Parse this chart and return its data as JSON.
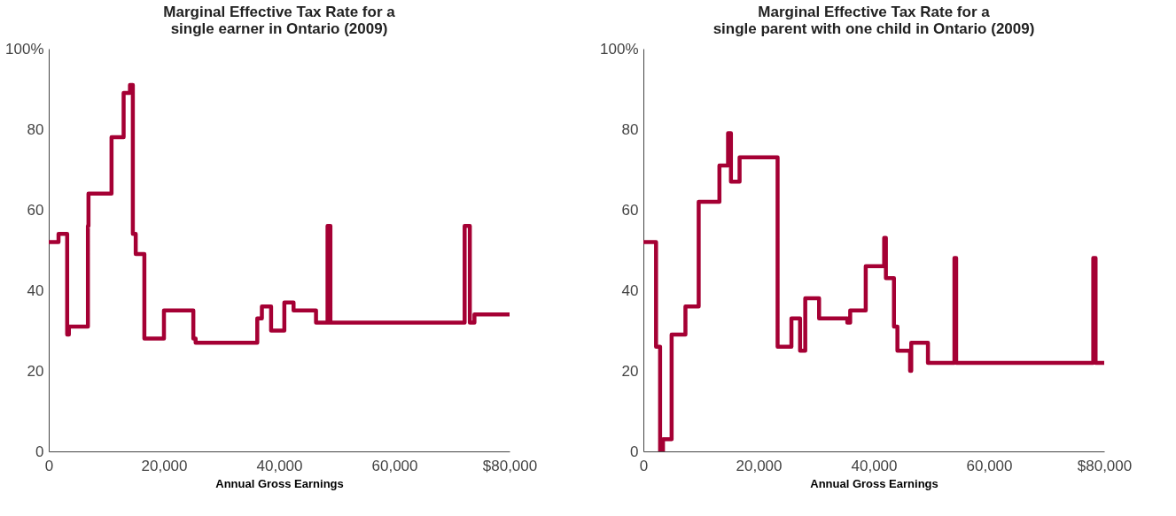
{
  "chart_data": [
    {
      "type": "step",
      "title": "Marginal Effective Tax Rate for a\nsingle earner in Ontario (2009)",
      "xlabel": "Annual Gross Earnings",
      "x": [
        0,
        1700,
        3200,
        3500,
        6800,
        6900,
        10900,
        13000,
        14100,
        14600,
        15100,
        16600,
        20000,
        25100,
        25500,
        36200,
        37000,
        38600,
        40900,
        42500,
        46400,
        48400,
        48900,
        72200,
        73100,
        73900,
        80000
      ],
      "series": [
        {
          "color": "#a50034",
          "values": [
            52,
            54,
            29,
            31,
            56,
            64,
            78,
            89,
            91,
            54,
            49,
            28,
            35,
            28,
            27,
            33,
            36,
            30,
            37,
            35,
            32,
            56,
            32,
            56,
            32,
            34,
            34
          ]
        }
      ],
      "xlim": [
        0,
        80000
      ],
      "xticks": [
        0,
        {
          "value": 20000,
          "label": "20,000"
        },
        {
          "value": 40000,
          "label": "40,000"
        },
        {
          "value": 60000,
          "label": "60,000"
        },
        {
          "value": 80000,
          "label": "$80,000"
        }
      ],
      "ylim": [
        0,
        100
      ],
      "yticks": [
        0,
        20,
        40,
        60,
        80,
        {
          "value": 100,
          "label": "100%"
        }
      ],
      "grid": false
    },
    {
      "type": "step",
      "title": "Marginal Effective Tax Rate for a\nsingle parent with one child in Ontario (2009)",
      "xlabel": "Annual Gross Earnings",
      "x": [
        0,
        2200,
        2900,
        3400,
        4900,
        7300,
        9600,
        13200,
        14700,
        15200,
        16700,
        23300,
        25700,
        27200,
        28100,
        30500,
        35400,
        35900,
        38600,
        41800,
        42100,
        43500,
        44100,
        46300,
        46500,
        49400,
        54000,
        54300,
        78100,
        78500,
        80000
      ],
      "series": [
        {
          "color": "#a50034",
          "values": [
            52,
            26,
            0,
            3,
            29,
            36,
            62,
            71,
            79,
            67,
            73,
            26,
            33,
            25,
            38,
            33,
            32,
            35,
            46,
            53,
            43,
            31,
            25,
            20,
            27,
            22,
            48,
            22,
            48,
            22,
            22
          ]
        }
      ],
      "xlim": [
        0,
        80000
      ],
      "xticks": [
        0,
        {
          "value": 20000,
          "label": "20,000"
        },
        {
          "value": 40000,
          "label": "40,000"
        },
        {
          "value": 60000,
          "label": "60,000"
        },
        {
          "value": 80000,
          "label": "$80,000"
        }
      ],
      "ylim": [
        0,
        100
      ],
      "yticks": [
        0,
        20,
        40,
        60,
        80,
        {
          "value": 100,
          "label": "100%"
        }
      ],
      "grid": false
    }
  ]
}
